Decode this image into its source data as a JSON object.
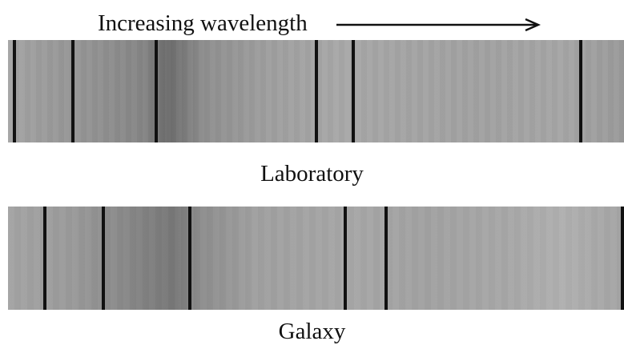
{
  "diagram": {
    "direction_label": "Increasing wavelength",
    "spectra": [
      {
        "label": "Laboratory",
        "line_positions_relative": [
          0.01,
          0.105,
          0.24,
          0.5,
          0.56,
          0.93
        ]
      },
      {
        "label": "Galaxy",
        "line_positions_relative": [
          0.06,
          0.155,
          0.295,
          0.547,
          0.614,
          0.999
        ]
      }
    ],
    "colors": {
      "line": "#111111",
      "spectrum_dark": "#6d6d6d",
      "spectrum_light": "#a8a8a8"
    }
  }
}
